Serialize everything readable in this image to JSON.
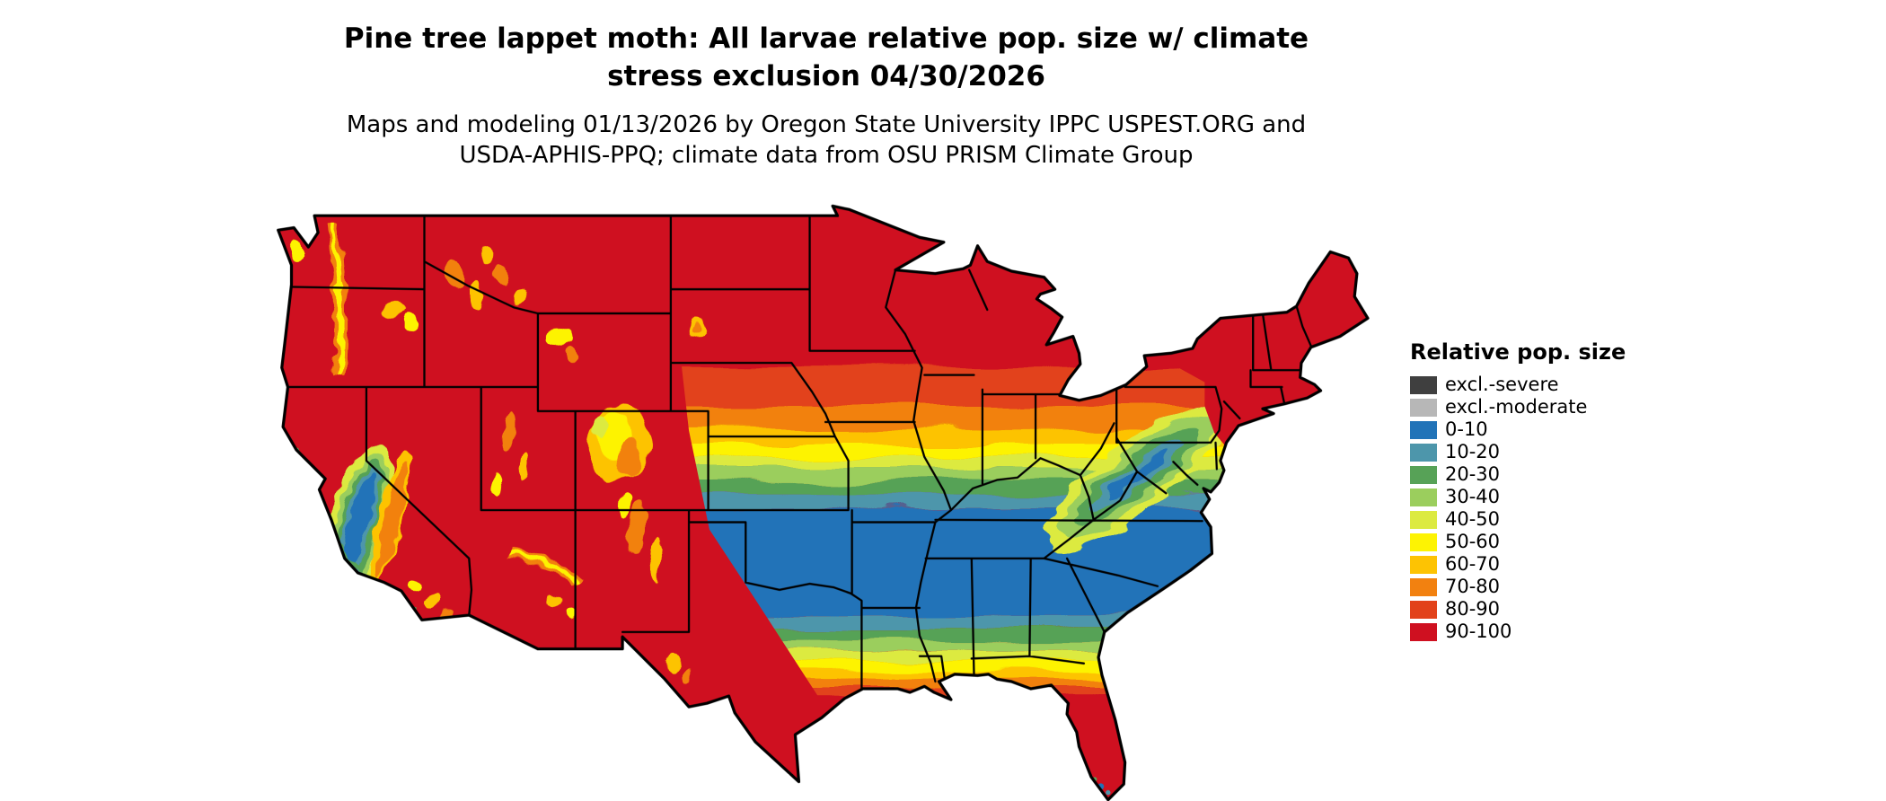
{
  "title": {
    "line1": "Pine tree lappet moth: All larvae relative pop. size w/ climate",
    "line2": "stress exclusion 04/30/2026"
  },
  "subtitle": {
    "line1": "Maps and modeling 01/13/2026 by Oregon State University IPPC USPEST.ORG and",
    "line2": "USDA-APHIS-PPQ; climate data from OSU PRISM Climate Group"
  },
  "legend": {
    "title": "Relative pop. size",
    "items": [
      {
        "label": "excl.-severe",
        "color": "#3f3f3f"
      },
      {
        "label": "excl.-moderate",
        "color": "#b7b7b7"
      },
      {
        "label": "0-10",
        "color": "#2173b8"
      },
      {
        "label": "10-20",
        "color": "#4d96ab"
      },
      {
        "label": "20-30",
        "color": "#57a257"
      },
      {
        "label": "30-40",
        "color": "#9bce5d"
      },
      {
        "label": "40-50",
        "color": "#dcea41"
      },
      {
        "label": "50-60",
        "color": "#fdf303"
      },
      {
        "label": "60-70",
        "color": "#fdc303"
      },
      {
        "label": "70-80",
        "color": "#f28110"
      },
      {
        "label": "80-90",
        "color": "#e2421a"
      },
      {
        "label": "90-100",
        "color": "#cf1020"
      }
    ]
  }
}
